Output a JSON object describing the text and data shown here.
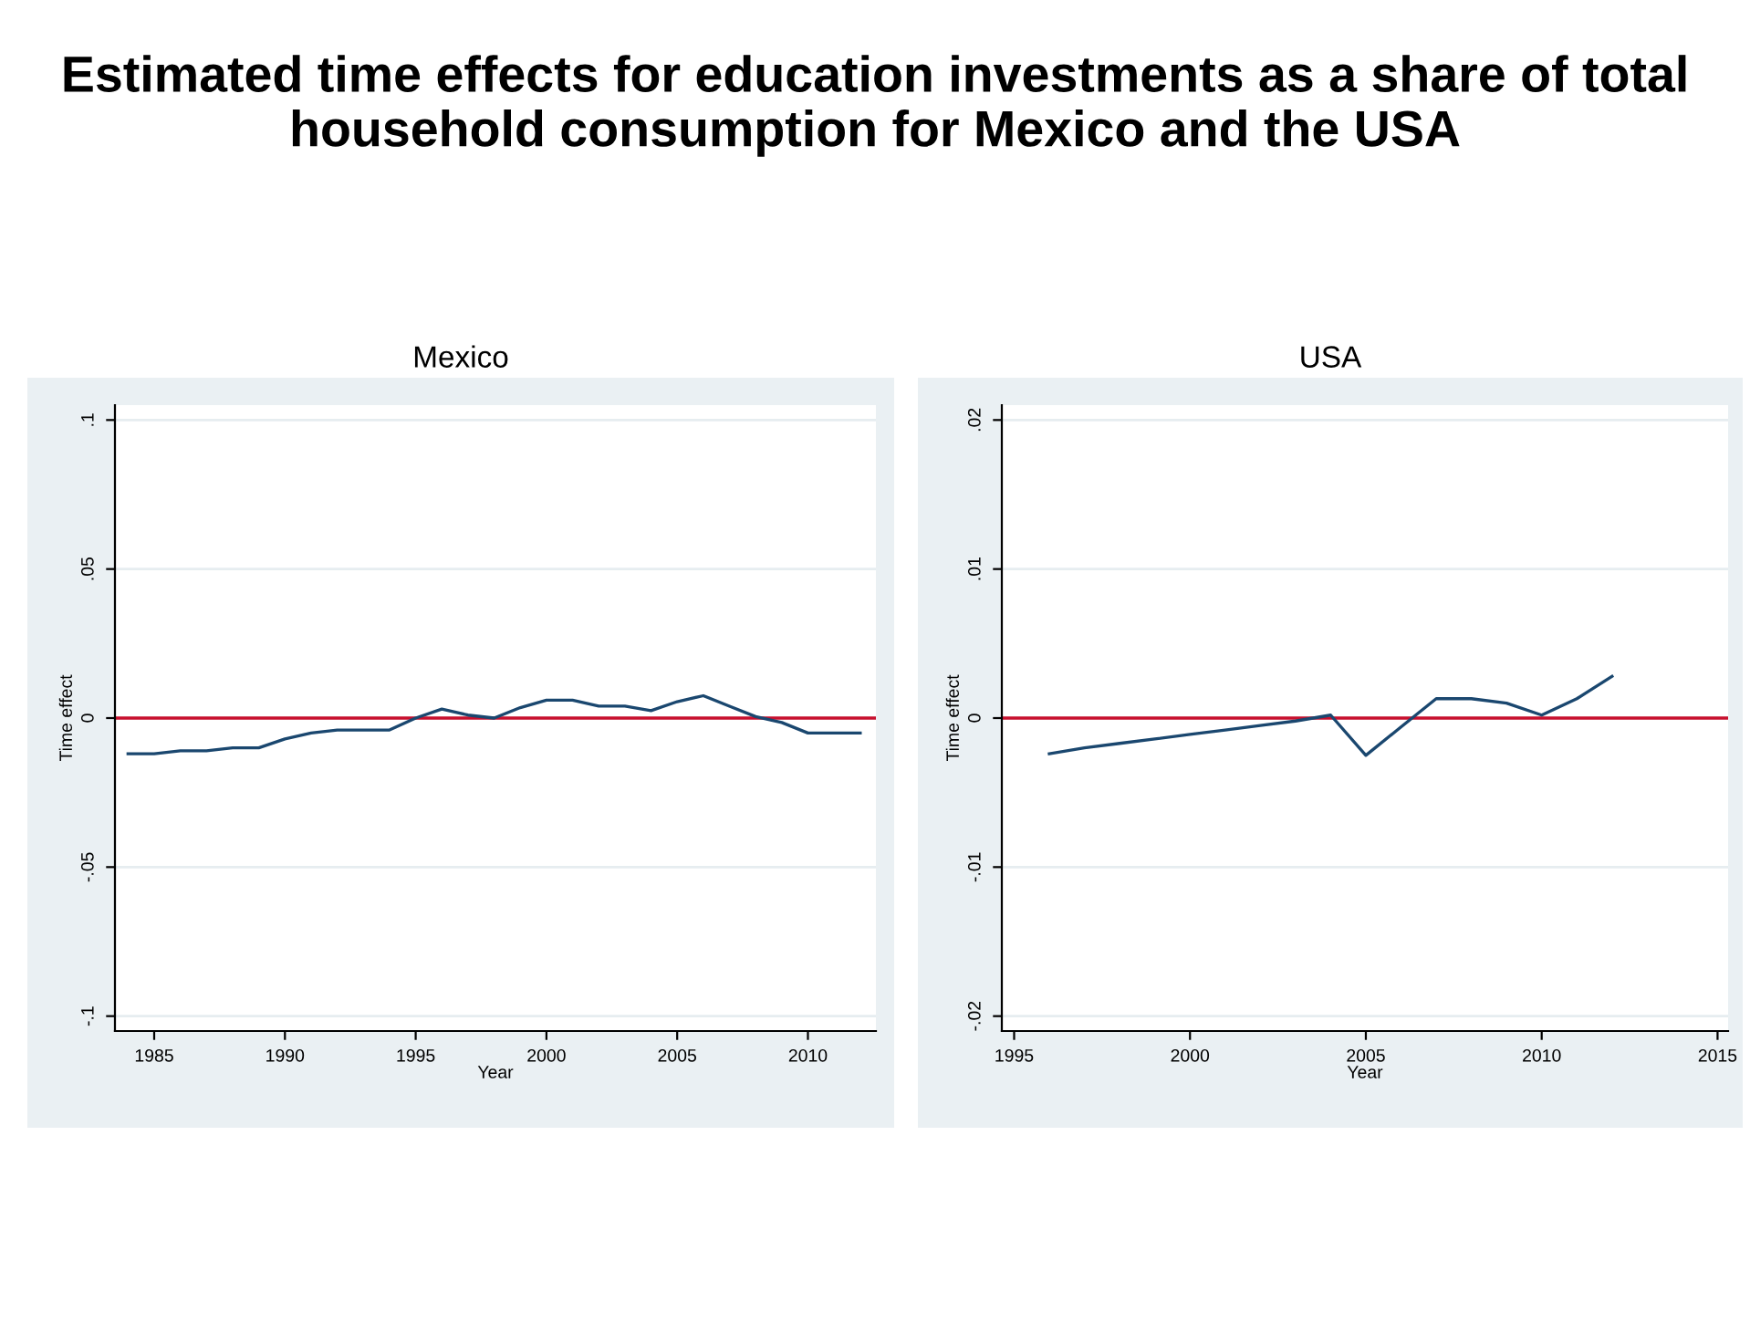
{
  "chart_data": [
    {
      "type": "line",
      "title": "Mexico",
      "annotations": [
        "Estimated time effects for education investments as a share of total household consumption for Mexico and the USA"
      ],
      "xlabel": "Year",
      "ylabel": "Time effect",
      "x": [
        1984,
        1985,
        1986,
        1987,
        1988,
        1989,
        1990,
        1991,
        1992,
        1993,
        1994,
        1995,
        1996,
        1997,
        1998,
        1999,
        2000,
        2001,
        2002,
        2003,
        2004,
        2005,
        2006,
        2007,
        2008,
        2009,
        2010,
        2011,
        2012
      ],
      "series": [
        {
          "color": "#1a476f",
          "values": [
            -0.012,
            -0.012,
            -0.011,
            -0.011,
            -0.01,
            -0.01,
            -0.007,
            -0.005,
            -0.004,
            -0.004,
            -0.004,
            0.0,
            0.003,
            0.001,
            0.0,
            0.0035,
            0.006,
            0.006,
            0.004,
            0.004,
            0.0025,
            0.0055,
            0.0075,
            0.004,
            0.0005,
            -0.0015,
            -0.005,
            -0.005,
            -0.005
          ]
        }
      ],
      "xlim": [
        1983.5,
        2012.6
      ],
      "ylim": [
        -0.105,
        0.105
      ],
      "xticks": [
        1985,
        1990,
        1995,
        2000,
        2005,
        2010
      ],
      "yticks": [
        {
          "value": -0.1,
          "label": "-.1"
        },
        {
          "value": -0.05,
          "label": "-.05"
        },
        0,
        {
          "value": 0.05,
          "label": ".05"
        },
        {
          "value": 0.1,
          "label": ".1"
        }
      ],
      "ref_lines": [
        {
          "axis": "y",
          "value": 0,
          "color": "#c8102e"
        }
      ],
      "grid": "y",
      "marker": "none",
      "line_style": "solid",
      "legend": false
    },
    {
      "type": "line",
      "title": "USA",
      "xlabel": "Year",
      "ylabel": "Time effect",
      "x": [
        1996,
        1997,
        1998,
        1999,
        2000,
        2001,
        2002,
        2003,
        2004,
        2005,
        2006,
        2007,
        2008,
        2009,
        2010,
        2011,
        2012
      ],
      "series": [
        {
          "color": "#1a476f",
          "values": [
            -0.0024,
            -0.002,
            -0.0017,
            -0.0014,
            -0.0011,
            -0.0008,
            -0.0005,
            -0.0002,
            0.0002,
            -0.0025,
            -0.0006,
            0.0013,
            0.0013,
            0.001,
            0.0002,
            0.0013,
            0.0028
          ]
        }
      ],
      "xlim": [
        1994.65,
        2015.3
      ],
      "ylim": [
        -0.021,
        0.021
      ],
      "xticks": [
        1995,
        2000,
        2005,
        2010,
        2015
      ],
      "yticks": [
        {
          "value": -0.02,
          "label": "-.02"
        },
        {
          "value": -0.01,
          "label": "-.01"
        },
        0,
        {
          "value": 0.01,
          "label": ".01"
        },
        {
          "value": 0.02,
          "label": ".02"
        }
      ],
      "ref_lines": [
        {
          "axis": "y",
          "value": 0,
          "color": "#c8102e"
        }
      ],
      "grid": "y",
      "marker": "none",
      "line_style": "solid",
      "legend": false
    }
  ]
}
